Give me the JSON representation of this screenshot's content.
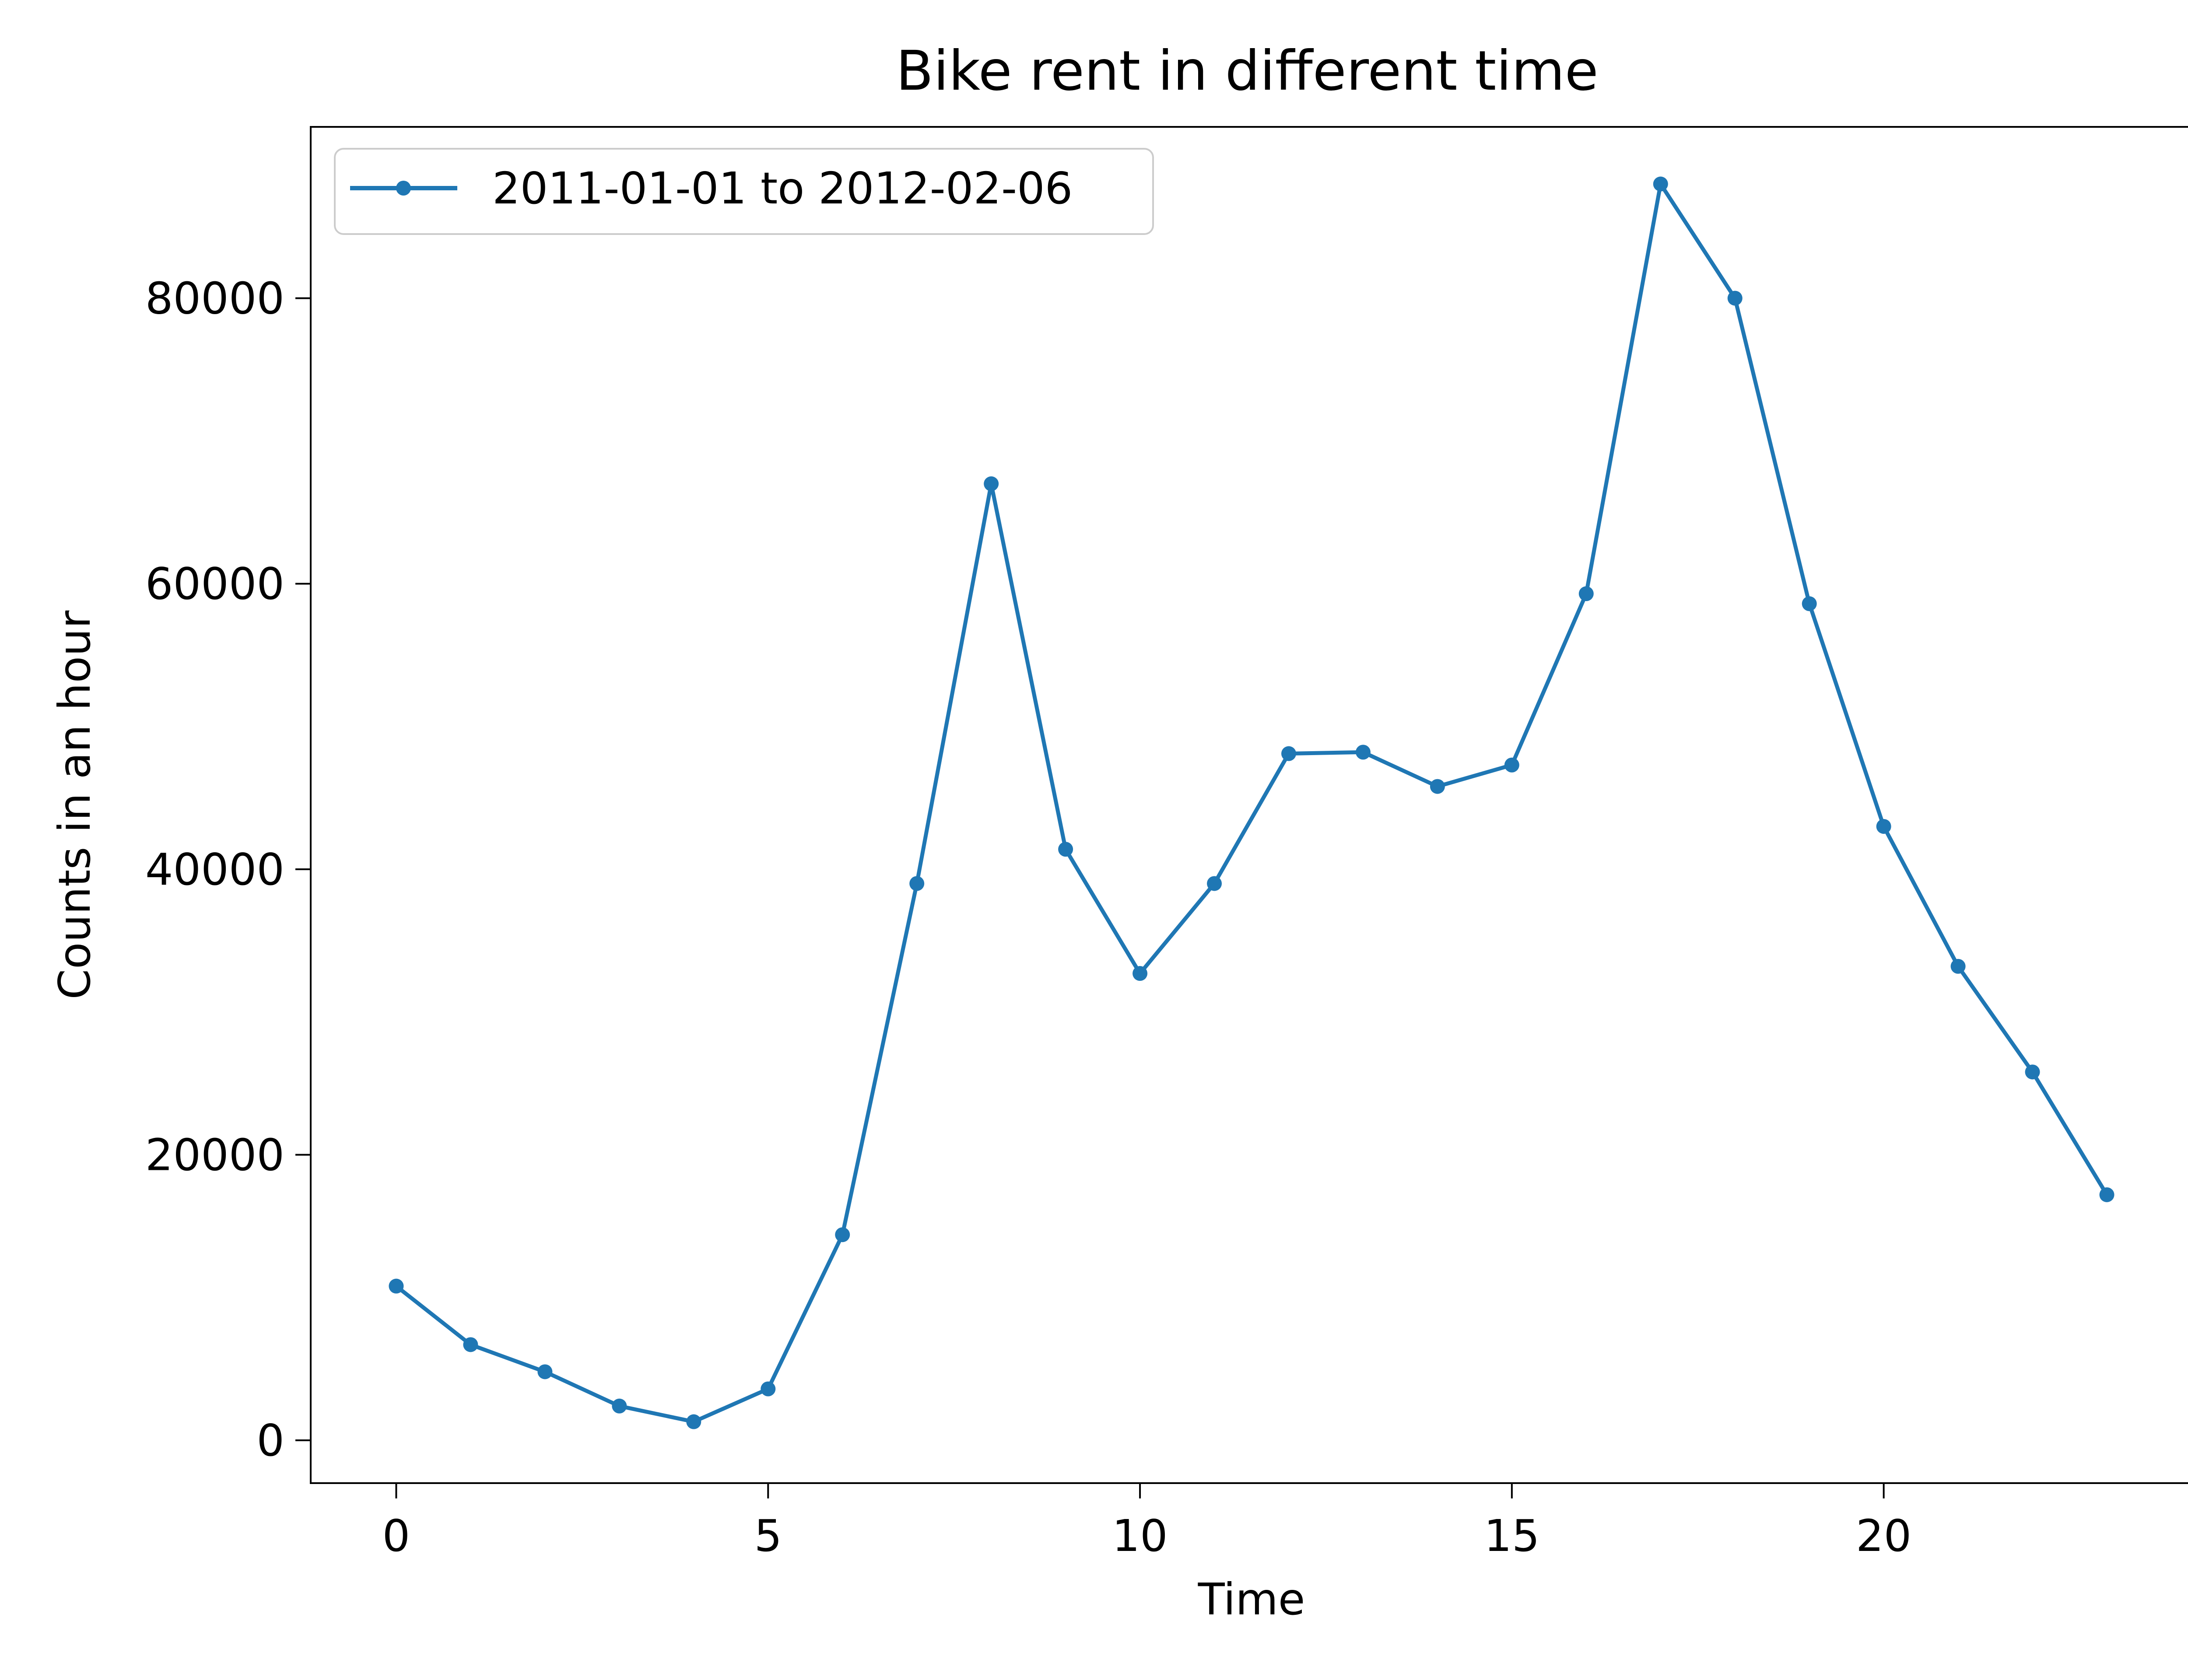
{
  "chart_data": {
    "type": "line",
    "title": "Bike rent in different time",
    "xlabel": "Time",
    "ylabel": "Counts in an hour",
    "xlim": [
      -1.15,
      24.15
    ],
    "ylim": [
      -3000,
      92000
    ],
    "xticks": [
      0,
      5,
      10,
      15,
      20
    ],
    "yticks": [
      0,
      20000,
      40000,
      60000,
      80000
    ],
    "grid": false,
    "legend_position": "top-left",
    "colors": {
      "series": "#1f77b4",
      "axes": "#000000",
      "background": "#ffffff"
    },
    "x": [
      0,
      1,
      2,
      3,
      4,
      5,
      6,
      7,
      8,
      9,
      10,
      11,
      12,
      13,
      14,
      15,
      16,
      17,
      18,
      19,
      20,
      21,
      22,
      23
    ],
    "series": [
      {
        "name": "2011-01-01 to 2012-02-06",
        "marker": "dot",
        "values": [
          10800,
          6700,
          4800,
          2400,
          1300,
          3600,
          14400,
          39000,
          67000,
          41400,
          32700,
          39000,
          48100,
          48200,
          45800,
          47300,
          59300,
          88000,
          80000,
          58600,
          43000,
          33200,
          25800,
          17200
        ]
      }
    ]
  }
}
